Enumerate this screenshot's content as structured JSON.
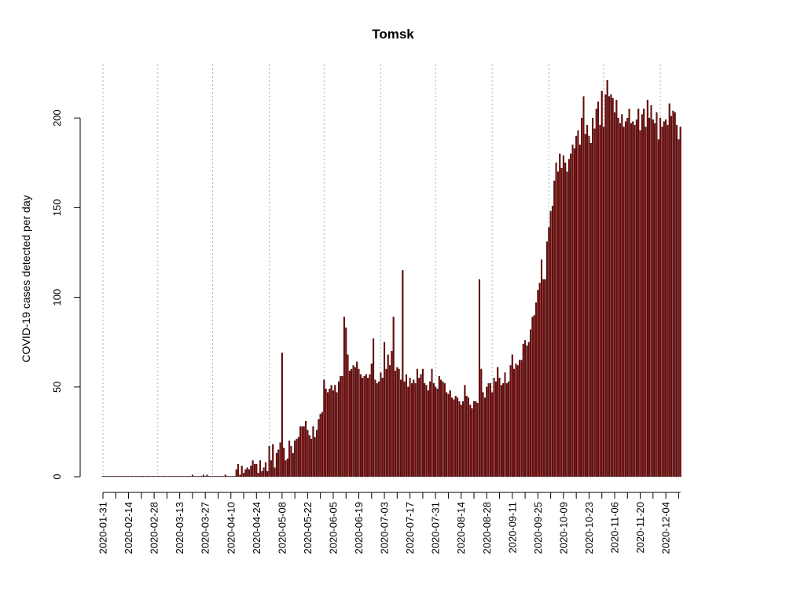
{
  "chart_data": {
    "type": "bar",
    "title": "Tomsk",
    "xlabel": "",
    "ylabel": "COVID-19 cases detected per day",
    "ylim": [
      0,
      222
    ],
    "yticks": [
      0,
      50,
      100,
      150,
      200
    ],
    "x_start": "2020-01-31",
    "x_end": "2020-12-12",
    "xtick_labels": [
      "2020-01-31",
      "2020-02-14",
      "2020-02-28",
      "2020-03-13",
      "2020-03-27",
      "2020-04-10",
      "2020-04-24",
      "2020-05-08",
      "2020-05-22",
      "2020-06-05",
      "2020-06-19",
      "2020-07-03",
      "2020-07-17",
      "2020-07-31",
      "2020-08-14",
      "2020-08-28",
      "2020-09-11",
      "2020-09-25",
      "2020-10-09",
      "2020-10-23",
      "2020-11-06",
      "2020-11-20",
      "2020-12-04"
    ],
    "vlines": [
      "2020-01-31",
      "2020-03-01",
      "2020-03-31",
      "2020-05-01",
      "2020-05-31",
      "2020-07-01",
      "2020-07-31",
      "2020-08-31",
      "2020-10-01",
      "2020-10-31",
      "2020-12-01"
    ],
    "grid": "dashed vertical lines",
    "bar_color": "#8b0000",
    "bar_border": "#000000",
    "points": [
      [
        "2020-01-31",
        0
      ],
      [
        "2020-02-01",
        0
      ],
      [
        "2020-02-02",
        0
      ],
      [
        "2020-02-03",
        0
      ],
      [
        "2020-02-04",
        0
      ],
      [
        "2020-02-05",
        0
      ],
      [
        "2020-02-06",
        0
      ],
      [
        "2020-02-07",
        0
      ],
      [
        "2020-02-08",
        0
      ],
      [
        "2020-02-09",
        0
      ],
      [
        "2020-02-10",
        0
      ],
      [
        "2020-02-11",
        0
      ],
      [
        "2020-02-12",
        0
      ],
      [
        "2020-02-13",
        0
      ],
      [
        "2020-02-14",
        0
      ],
      [
        "2020-02-15",
        0
      ],
      [
        "2020-02-16",
        0
      ],
      [
        "2020-02-17",
        0
      ],
      [
        "2020-02-18",
        0
      ],
      [
        "2020-02-19",
        0
      ],
      [
        "2020-02-20",
        0
      ],
      [
        "2020-02-21",
        0
      ],
      [
        "2020-02-22",
        0
      ],
      [
        "2020-02-23",
        0
      ],
      [
        "2020-02-24",
        0
      ],
      [
        "2020-02-25",
        0
      ],
      [
        "2020-02-26",
        0
      ],
      [
        "2020-02-27",
        0
      ],
      [
        "2020-02-28",
        0
      ],
      [
        "2020-02-29",
        0
      ],
      [
        "2020-03-01",
        0
      ],
      [
        "2020-03-02",
        0
      ],
      [
        "2020-03-03",
        0
      ],
      [
        "2020-03-04",
        0
      ],
      [
        "2020-03-05",
        0
      ],
      [
        "2020-03-06",
        0
      ],
      [
        "2020-03-07",
        0
      ],
      [
        "2020-03-08",
        0
      ],
      [
        "2020-03-09",
        0
      ],
      [
        "2020-03-10",
        0
      ],
      [
        "2020-03-11",
        0
      ],
      [
        "2020-03-12",
        0
      ],
      [
        "2020-03-13",
        0
      ],
      [
        "2020-03-14",
        0
      ],
      [
        "2020-03-15",
        0
      ],
      [
        "2020-03-16",
        0
      ],
      [
        "2020-03-17",
        0
      ],
      [
        "2020-03-18",
        0
      ],
      [
        "2020-03-19",
        0
      ],
      [
        "2020-03-20",
        1
      ],
      [
        "2020-03-21",
        0
      ],
      [
        "2020-03-22",
        0
      ],
      [
        "2020-03-23",
        0
      ],
      [
        "2020-03-24",
        0
      ],
      [
        "2020-03-25",
        0
      ],
      [
        "2020-03-26",
        1
      ],
      [
        "2020-03-27",
        0
      ],
      [
        "2020-03-28",
        1
      ],
      [
        "2020-03-29",
        0
      ],
      [
        "2020-03-30",
        0
      ],
      [
        "2020-03-31",
        0
      ],
      [
        "2020-04-01",
        0
      ],
      [
        "2020-04-02",
        0
      ],
      [
        "2020-04-03",
        0
      ],
      [
        "2020-04-04",
        0
      ],
      [
        "2020-04-05",
        0
      ],
      [
        "2020-04-06",
        0
      ],
      [
        "2020-04-07",
        1
      ],
      [
        "2020-04-08",
        0
      ],
      [
        "2020-04-09",
        0
      ],
      [
        "2020-04-10",
        0
      ],
      [
        "2020-04-11",
        0
      ],
      [
        "2020-04-12",
        0
      ],
      [
        "2020-04-13",
        4
      ],
      [
        "2020-04-14",
        7
      ],
      [
        "2020-04-15",
        1
      ],
      [
        "2020-04-16",
        6
      ],
      [
        "2020-04-17",
        2
      ],
      [
        "2020-04-18",
        4
      ],
      [
        "2020-04-19",
        5
      ],
      [
        "2020-04-20",
        4
      ],
      [
        "2020-04-21",
        6
      ],
      [
        "2020-04-22",
        9
      ],
      [
        "2020-04-23",
        7
      ],
      [
        "2020-04-24",
        7
      ],
      [
        "2020-04-25",
        2
      ],
      [
        "2020-04-26",
        9
      ],
      [
        "2020-04-27",
        3
      ],
      [
        "2020-04-28",
        5
      ],
      [
        "2020-04-29",
        8
      ],
      [
        "2020-04-30",
        3
      ],
      [
        "2020-05-01",
        17
      ],
      [
        "2020-05-02",
        9
      ],
      [
        "2020-05-03",
        18
      ],
      [
        "2020-05-04",
        5
      ],
      [
        "2020-05-05",
        13
      ],
      [
        "2020-05-06",
        15
      ],
      [
        "2020-05-07",
        19
      ],
      [
        "2020-05-08",
        69
      ],
      [
        "2020-05-09",
        16
      ],
      [
        "2020-05-10",
        9
      ],
      [
        "2020-05-11",
        10
      ],
      [
        "2020-05-12",
        20
      ],
      [
        "2020-05-13",
        17
      ],
      [
        "2020-05-14",
        13
      ],
      [
        "2020-05-15",
        20
      ],
      [
        "2020-05-16",
        21
      ],
      [
        "2020-05-17",
        22
      ],
      [
        "2020-05-18",
        28
      ],
      [
        "2020-05-19",
        28
      ],
      [
        "2020-05-20",
        28
      ],
      [
        "2020-05-21",
        31
      ],
      [
        "2020-05-22",
        26
      ],
      [
        "2020-05-23",
        23
      ],
      [
        "2020-05-24",
        21
      ],
      [
        "2020-05-25",
        28
      ],
      [
        "2020-05-26",
        22
      ],
      [
        "2020-05-27",
        26
      ],
      [
        "2020-05-28",
        32
      ],
      [
        "2020-05-29",
        35
      ],
      [
        "2020-05-30",
        36
      ],
      [
        "2020-05-31",
        54
      ],
      [
        "2020-06-01",
        49
      ],
      [
        "2020-06-02",
        47
      ],
      [
        "2020-06-03",
        49
      ],
      [
        "2020-06-04",
        51
      ],
      [
        "2020-06-05",
        48
      ],
      [
        "2020-06-06",
        51
      ],
      [
        "2020-06-07",
        47
      ],
      [
        "2020-06-08",
        53
      ],
      [
        "2020-06-09",
        56
      ],
      [
        "2020-06-10",
        56
      ],
      [
        "2020-06-11",
        89
      ],
      [
        "2020-06-12",
        83
      ],
      [
        "2020-06-13",
        68
      ],
      [
        "2020-06-14",
        59
      ],
      [
        "2020-06-15",
        60
      ],
      [
        "2020-06-16",
        62
      ],
      [
        "2020-06-17",
        61
      ],
      [
        "2020-06-18",
        64
      ],
      [
        "2020-06-19",
        60
      ],
      [
        "2020-06-20",
        57
      ],
      [
        "2020-06-21",
        55
      ],
      [
        "2020-06-22",
        56
      ],
      [
        "2020-06-23",
        57
      ],
      [
        "2020-06-24",
        55
      ],
      [
        "2020-06-25",
        57
      ],
      [
        "2020-06-26",
        63
      ],
      [
        "2020-06-27",
        77
      ],
      [
        "2020-06-28",
        54
      ],
      [
        "2020-06-29",
        52
      ],
      [
        "2020-06-30",
        53
      ],
      [
        "2020-07-01",
        58
      ],
      [
        "2020-07-02",
        55
      ],
      [
        "2020-07-03",
        75
      ],
      [
        "2020-07-04",
        60
      ],
      [
        "2020-07-05",
        68
      ],
      [
        "2020-07-06",
        62
      ],
      [
        "2020-07-07",
        70
      ],
      [
        "2020-07-08",
        89
      ],
      [
        "2020-07-09",
        59
      ],
      [
        "2020-07-10",
        61
      ],
      [
        "2020-07-11",
        60
      ],
      [
        "2020-07-12",
        54
      ],
      [
        "2020-07-13",
        115
      ],
      [
        "2020-07-14",
        53
      ],
      [
        "2020-07-15",
        57
      ],
      [
        "2020-07-16",
        50
      ],
      [
        "2020-07-17",
        55
      ],
      [
        "2020-07-18",
        52
      ],
      [
        "2020-07-19",
        54
      ],
      [
        "2020-07-20",
        52
      ],
      [
        "2020-07-21",
        60
      ],
      [
        "2020-07-22",
        55
      ],
      [
        "2020-07-23",
        57
      ],
      [
        "2020-07-24",
        60
      ],
      [
        "2020-07-25",
        52
      ],
      [
        "2020-07-26",
        51
      ],
      [
        "2020-07-27",
        48
      ],
      [
        "2020-07-28",
        53
      ],
      [
        "2020-07-29",
        60
      ],
      [
        "2020-07-30",
        52
      ],
      [
        "2020-07-31",
        50
      ],
      [
        "2020-08-01",
        49
      ],
      [
        "2020-08-02",
        56
      ],
      [
        "2020-08-03",
        54
      ],
      [
        "2020-08-04",
        53
      ],
      [
        "2020-08-05",
        52
      ],
      [
        "2020-08-06",
        47
      ],
      [
        "2020-08-07",
        46
      ],
      [
        "2020-08-08",
        48
      ],
      [
        "2020-08-09",
        44
      ],
      [
        "2020-08-10",
        43
      ],
      [
        "2020-08-11",
        45
      ],
      [
        "2020-08-12",
        44
      ],
      [
        "2020-08-13",
        42
      ],
      [
        "2020-08-14",
        40
      ],
      [
        "2020-08-15",
        42
      ],
      [
        "2020-08-16",
        51
      ],
      [
        "2020-08-17",
        45
      ],
      [
        "2020-08-18",
        44
      ],
      [
        "2020-08-19",
        40
      ],
      [
        "2020-08-20",
        38
      ],
      [
        "2020-08-21",
        42
      ],
      [
        "2020-08-22",
        42
      ],
      [
        "2020-08-23",
        41
      ],
      [
        "2020-08-24",
        110
      ],
      [
        "2020-08-25",
        60
      ],
      [
        "2020-08-26",
        47
      ],
      [
        "2020-08-27",
        44
      ],
      [
        "2020-08-28",
        50
      ],
      [
        "2020-08-29",
        52
      ],
      [
        "2020-08-30",
        52
      ],
      [
        "2020-08-31",
        47
      ],
      [
        "2020-09-01",
        55
      ],
      [
        "2020-09-02",
        53
      ],
      [
        "2020-09-03",
        61
      ],
      [
        "2020-09-04",
        55
      ],
      [
        "2020-09-05",
        51
      ],
      [
        "2020-09-06",
        52
      ],
      [
        "2020-09-07",
        58
      ],
      [
        "2020-09-08",
        52
      ],
      [
        "2020-09-09",
        53
      ],
      [
        "2020-09-10",
        62
      ],
      [
        "2020-09-11",
        68
      ],
      [
        "2020-09-12",
        60
      ],
      [
        "2020-09-13",
        63
      ],
      [
        "2020-09-14",
        62
      ],
      [
        "2020-09-15",
        65
      ],
      [
        "2020-09-16",
        65
      ],
      [
        "2020-09-17",
        74
      ],
      [
        "2020-09-18",
        76
      ],
      [
        "2020-09-19",
        73
      ],
      [
        "2020-09-20",
        75
      ],
      [
        "2020-09-21",
        82
      ],
      [
        "2020-09-22",
        89
      ],
      [
        "2020-09-23",
        90
      ],
      [
        "2020-09-24",
        97
      ],
      [
        "2020-09-25",
        104
      ],
      [
        "2020-09-26",
        108
      ],
      [
        "2020-09-27",
        121
      ],
      [
        "2020-09-28",
        110
      ],
      [
        "2020-09-29",
        110
      ],
      [
        "2020-09-30",
        131
      ],
      [
        "2020-10-01",
        139
      ],
      [
        "2020-10-02",
        148
      ],
      [
        "2020-10-03",
        151
      ],
      [
        "2020-10-04",
        165
      ],
      [
        "2020-10-05",
        175
      ],
      [
        "2020-10-06",
        170
      ],
      [
        "2020-10-07",
        180
      ],
      [
        "2020-10-08",
        172
      ],
      [
        "2020-10-09",
        179
      ],
      [
        "2020-10-10",
        175
      ],
      [
        "2020-10-11",
        170
      ],
      [
        "2020-10-12",
        177
      ],
      [
        "2020-10-13",
        180
      ],
      [
        "2020-10-14",
        185
      ],
      [
        "2020-10-15",
        183
      ],
      [
        "2020-10-16",
        190
      ],
      [
        "2020-10-17",
        193
      ],
      [
        "2020-10-18",
        185
      ],
      [
        "2020-10-19",
        200
      ],
      [
        "2020-10-20",
        212
      ],
      [
        "2020-10-21",
        191
      ],
      [
        "2020-10-22",
        196
      ],
      [
        "2020-10-23",
        190
      ],
      [
        "2020-10-24",
        186
      ],
      [
        "2020-10-25",
        200
      ],
      [
        "2020-10-26",
        194
      ],
      [
        "2020-10-27",
        205
      ],
      [
        "2020-10-28",
        209
      ],
      [
        "2020-10-29",
        196
      ],
      [
        "2020-10-30",
        215
      ],
      [
        "2020-10-31",
        195
      ],
      [
        "2020-11-01",
        213
      ],
      [
        "2020-11-02",
        221
      ],
      [
        "2020-11-03",
        212
      ],
      [
        "2020-11-04",
        213
      ],
      [
        "2020-11-05",
        211
      ],
      [
        "2020-11-06",
        203
      ],
      [
        "2020-11-07",
        210
      ],
      [
        "2020-11-08",
        200
      ],
      [
        "2020-11-09",
        197
      ],
      [
        "2020-11-10",
        202
      ],
      [
        "2020-11-11",
        195
      ],
      [
        "2020-11-12",
        198
      ],
      [
        "2020-11-13",
        200
      ],
      [
        "2020-11-14",
        205
      ],
      [
        "2020-11-15",
        197
      ],
      [
        "2020-11-16",
        198
      ],
      [
        "2020-11-17",
        196
      ],
      [
        "2020-11-18",
        199
      ],
      [
        "2020-11-19",
        205
      ],
      [
        "2020-11-20",
        193
      ],
      [
        "2020-11-21",
        202
      ],
      [
        "2020-11-22",
        205
      ],
      [
        "2020-11-23",
        195
      ],
      [
        "2020-11-24",
        210
      ],
      [
        "2020-11-25",
        200
      ],
      [
        "2020-11-26",
        207
      ],
      [
        "2020-11-27",
        199
      ],
      [
        "2020-11-28",
        197
      ],
      [
        "2020-11-29",
        203
      ],
      [
        "2020-11-30",
        188
      ],
      [
        "2020-12-01",
        200
      ],
      [
        "2020-12-02",
        195
      ],
      [
        "2020-12-03",
        198
      ],
      [
        "2020-12-04",
        199
      ],
      [
        "2020-12-05",
        196
      ],
      [
        "2020-12-06",
        208
      ],
      [
        "2020-12-07",
        201
      ],
      [
        "2020-12-08",
        204
      ],
      [
        "2020-12-09",
        203
      ],
      [
        "2020-12-10",
        196
      ],
      [
        "2020-12-11",
        188
      ],
      [
        "2020-12-12",
        195
      ]
    ]
  }
}
